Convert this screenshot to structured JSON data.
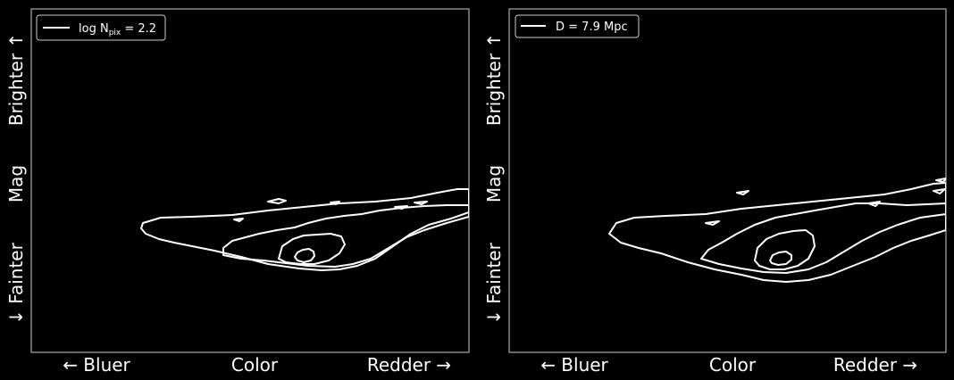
{
  "chart_data": [
    {
      "type": "contour",
      "xlabel": {
        "left": "← Bluer",
        "center": "Color",
        "right": "Redder →"
      },
      "ylabel": {
        "bottom": "↓ Fainter",
        "center": "Mag",
        "top": "Brighter ↑"
      },
      "legend": {
        "location": "top-left",
        "entries": [
          {
            "label_main": "log N",
            "label_sub": "pix",
            "label_rest": " = 2.2",
            "color": "#ffffff"
          }
        ]
      },
      "contour_levels": [
        "outer",
        "middle",
        "inner",
        "core"
      ]
    },
    {
      "type": "contour",
      "xlabel": {
        "left": "← Bluer",
        "center": "Color",
        "right": "Redder →"
      },
      "ylabel": {
        "bottom": "↓ Fainter",
        "center": "Mag",
        "top": "Brighter ↑"
      },
      "legend": {
        "location": "top-left",
        "entries": [
          {
            "label": "D = 7.9 Mpc",
            "color": "#ffffff"
          }
        ]
      },
      "contour_levels": [
        "outer",
        "middle",
        "inner",
        "core"
      ]
    }
  ],
  "colors": {
    "background": "#000000",
    "foreground": "#ffffff",
    "axes_edge": "#cccccc"
  }
}
